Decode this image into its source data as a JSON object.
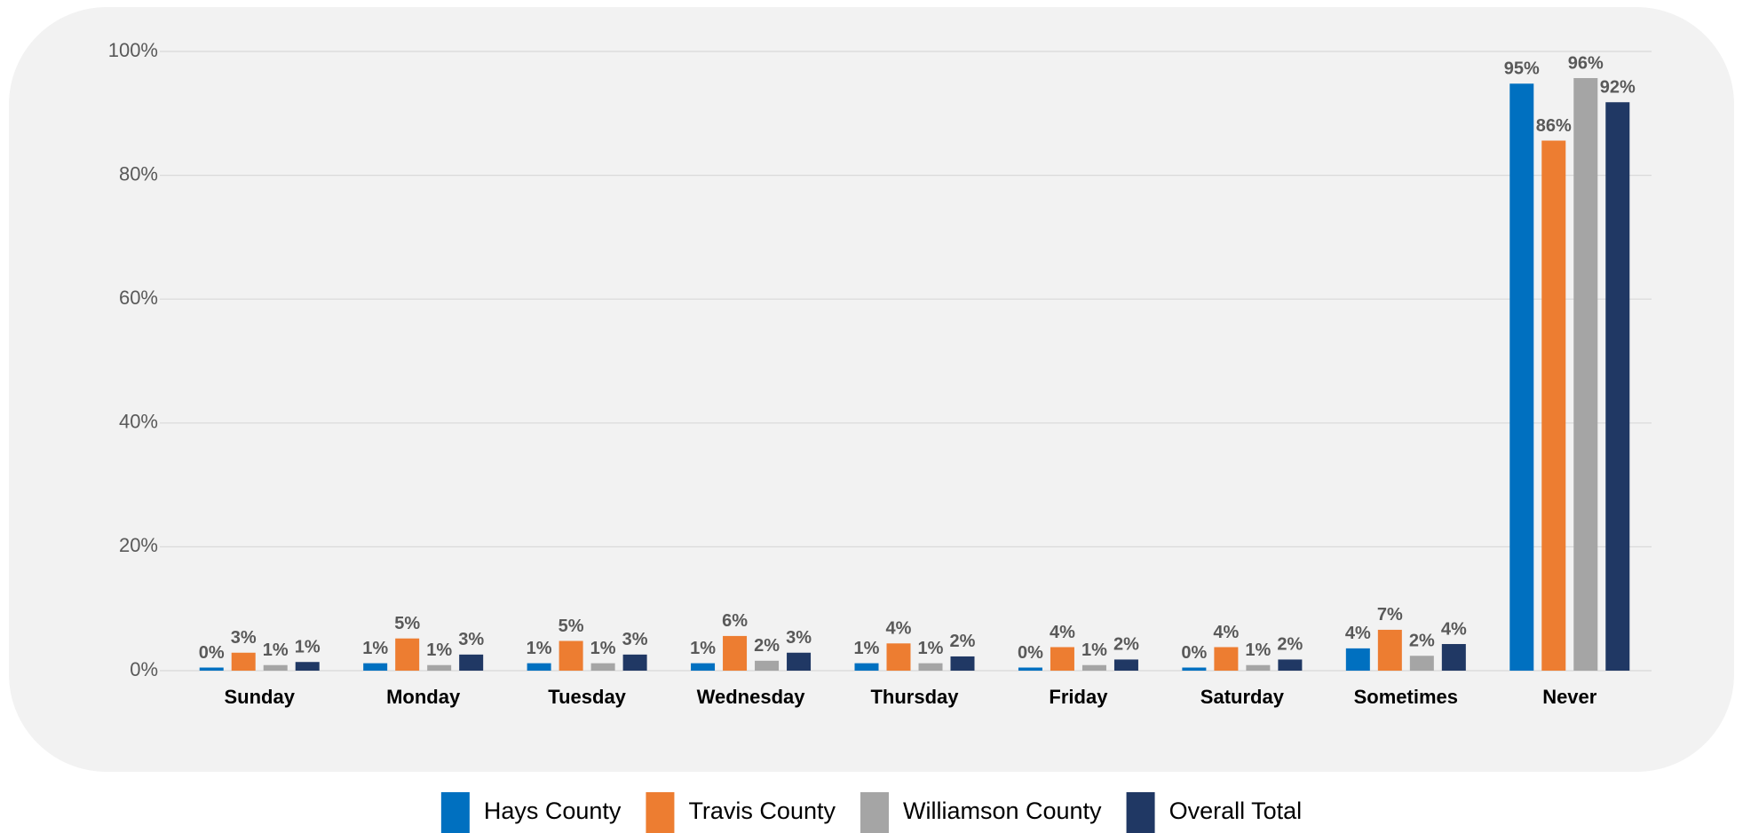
{
  "chart_data": {
    "type": "bar",
    "categories": [
      "Sunday",
      "Monday",
      "Tuesday",
      "Wednesday",
      "Thursday",
      "Friday",
      "Saturday",
      "Sometimes",
      "Never"
    ],
    "series": [
      {
        "name": "Hays County",
        "color": "#0070c0",
        "values": [
          0.5,
          1.2,
          1.2,
          1.2,
          1.2,
          0.5,
          0.5,
          3.6,
          94.8
        ],
        "value_labels": [
          "0%",
          "1%",
          "1%",
          "1%",
          "1%",
          "0%",
          "0%",
          "4%",
          "95%"
        ]
      },
      {
        "name": "Travis County",
        "color": "#ed7d31",
        "values": [
          2.9,
          5.2,
          4.8,
          5.6,
          4.4,
          3.8,
          3.8,
          6.6,
          85.6
        ],
        "value_labels": [
          "3%",
          "5%",
          "5%",
          "6%",
          "4%",
          "4%",
          "4%",
          "7%",
          "86%"
        ]
      },
      {
        "name": "Williamson County",
        "color": "#a5a5a5",
        "values": [
          0.9,
          0.9,
          1.2,
          1.6,
          1.2,
          0.9,
          0.9,
          2.4,
          95.7
        ],
        "value_labels": [
          "1%",
          "1%",
          "1%",
          "2%",
          "1%",
          "1%",
          "1%",
          "2%",
          "96%"
        ]
      },
      {
        "name": "Overall Total",
        "color": "#203864",
        "values": [
          1.4,
          2.6,
          2.6,
          2.9,
          2.3,
          1.8,
          1.8,
          4.3,
          91.8
        ],
        "value_labels": [
          "1%",
          "3%",
          "3%",
          "3%",
          "2%",
          "2%",
          "2%",
          "4%",
          "92%"
        ]
      }
    ],
    "ylim": [
      0,
      100
    ],
    "yticks": [
      {
        "value": 0,
        "label": "0%"
      },
      {
        "value": 20,
        "label": "20%"
      },
      {
        "value": 40,
        "label": "40%"
      },
      {
        "value": 60,
        "label": "60%"
      },
      {
        "value": 80,
        "label": "80%"
      },
      {
        "value": 100,
        "label": "100%"
      }
    ],
    "grid": true,
    "legend": "bottom"
  }
}
